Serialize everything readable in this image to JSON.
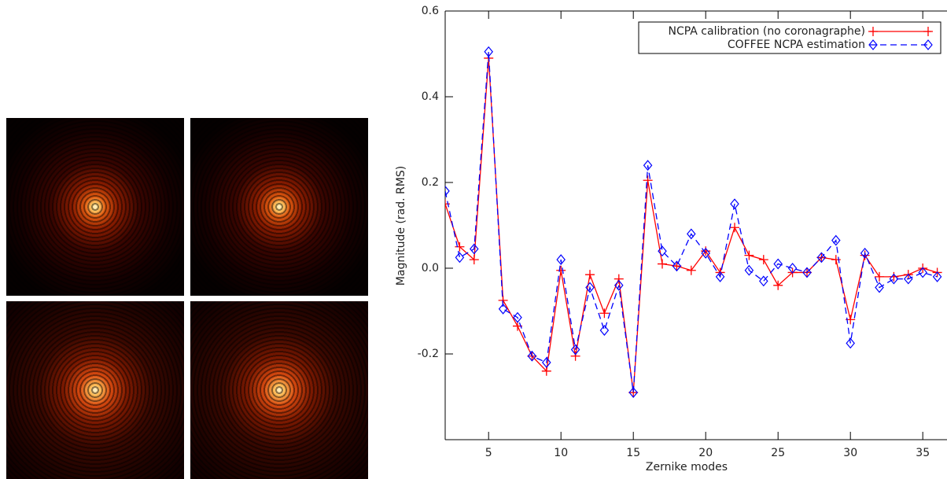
{
  "chart_data": {
    "type": "line",
    "x_label": "Zernike modes",
    "y_label": "Magnitude (rad. RMS)",
    "x": [
      2,
      3,
      4,
      5,
      6,
      7,
      8,
      9,
      10,
      11,
      12,
      13,
      14,
      15,
      16,
      17,
      18,
      19,
      20,
      21,
      22,
      23,
      24,
      25,
      26,
      27,
      28,
      29,
      30,
      31,
      32,
      33,
      34,
      35,
      36
    ],
    "series": [
      {
        "name": "NCPA calibration (no coronagraphe)",
        "color": "#ff0000",
        "marker": "plus",
        "dash": "solid",
        "values": [
          0.15,
          0.05,
          0.02,
          0.49,
          -0.075,
          -0.135,
          -0.205,
          -0.24,
          -0.005,
          -0.205,
          -0.015,
          -0.105,
          -0.025,
          -0.29,
          0.205,
          0.01,
          0.005,
          -0.005,
          0.04,
          -0.01,
          0.095,
          0.03,
          0.02,
          -0.04,
          -0.01,
          -0.01,
          0.025,
          0.02,
          -0.12,
          0.03,
          -0.02,
          -0.02,
          -0.015,
          0.0,
          -0.01
        ]
      },
      {
        "name": "COFFEE NCPA estimation",
        "color": "#0000ff",
        "marker": "diamond",
        "dash": "dashed",
        "values": [
          0.18,
          0.025,
          0.045,
          0.505,
          -0.095,
          -0.115,
          -0.205,
          -0.22,
          0.02,
          -0.19,
          -0.045,
          -0.145,
          -0.04,
          -0.29,
          0.24,
          0.04,
          0.005,
          0.08,
          0.035,
          -0.02,
          0.15,
          -0.005,
          -0.03,
          0.01,
          0.0,
          -0.01,
          0.025,
          0.065,
          -0.175,
          0.035,
          -0.045,
          -0.025,
          -0.025,
          -0.01,
          -0.02
        ]
      }
    ],
    "xlim": [
      2,
      36.7
    ],
    "ylim": [
      -0.4,
      0.6
    ],
    "xticks": [
      5,
      10,
      15,
      20,
      25,
      30,
      35
    ],
    "yticks": [
      -0.2,
      {
        "value": 0,
        "label": "0.0"
      },
      0.2,
      0.4,
      0.6
    ],
    "legend": "upper right"
  }
}
